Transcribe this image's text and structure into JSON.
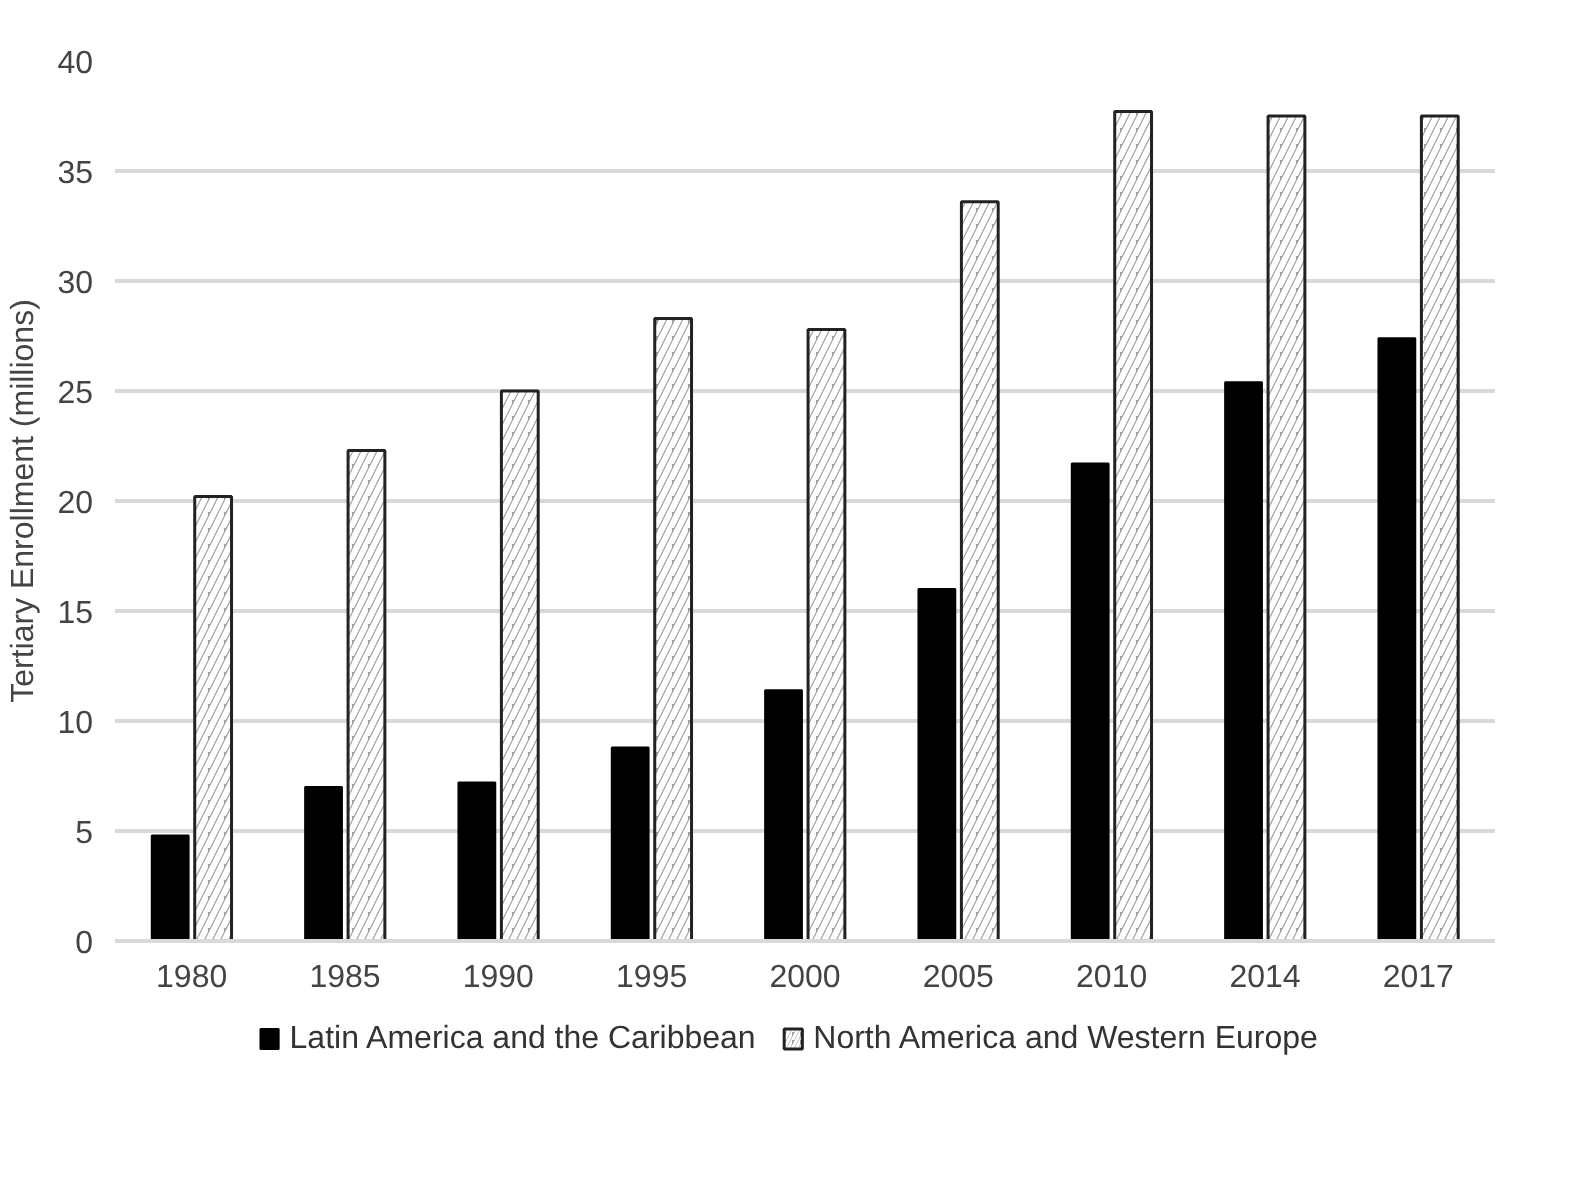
{
  "chart_data": {
    "type": "bar",
    "ylabel": "Tertiary Enrollment (millions)",
    "categories": [
      "1980",
      "1985",
      "1990",
      "1995",
      "2000",
      "2005",
      "2010",
      "2014",
      "2017"
    ],
    "series": [
      {
        "name": "Latin America and the Caribbean",
        "color": "#000000",
        "values": [
          4.8,
          7.0,
          7.2,
          8.8,
          11.4,
          16.0,
          21.7,
          25.4,
          27.4
        ]
      },
      {
        "name": "North America and Western Europe",
        "color": "#a0a0a0",
        "values": [
          20.2,
          22.3,
          25.0,
          28.3,
          27.8,
          33.6,
          37.7,
          37.5,
          37.5
        ]
      }
    ],
    "ylim": [
      0,
      40
    ],
    "yticks": [
      0,
      5,
      10,
      15,
      20,
      25,
      30,
      35,
      40
    ],
    "grid": "y",
    "legend": "bottom"
  }
}
